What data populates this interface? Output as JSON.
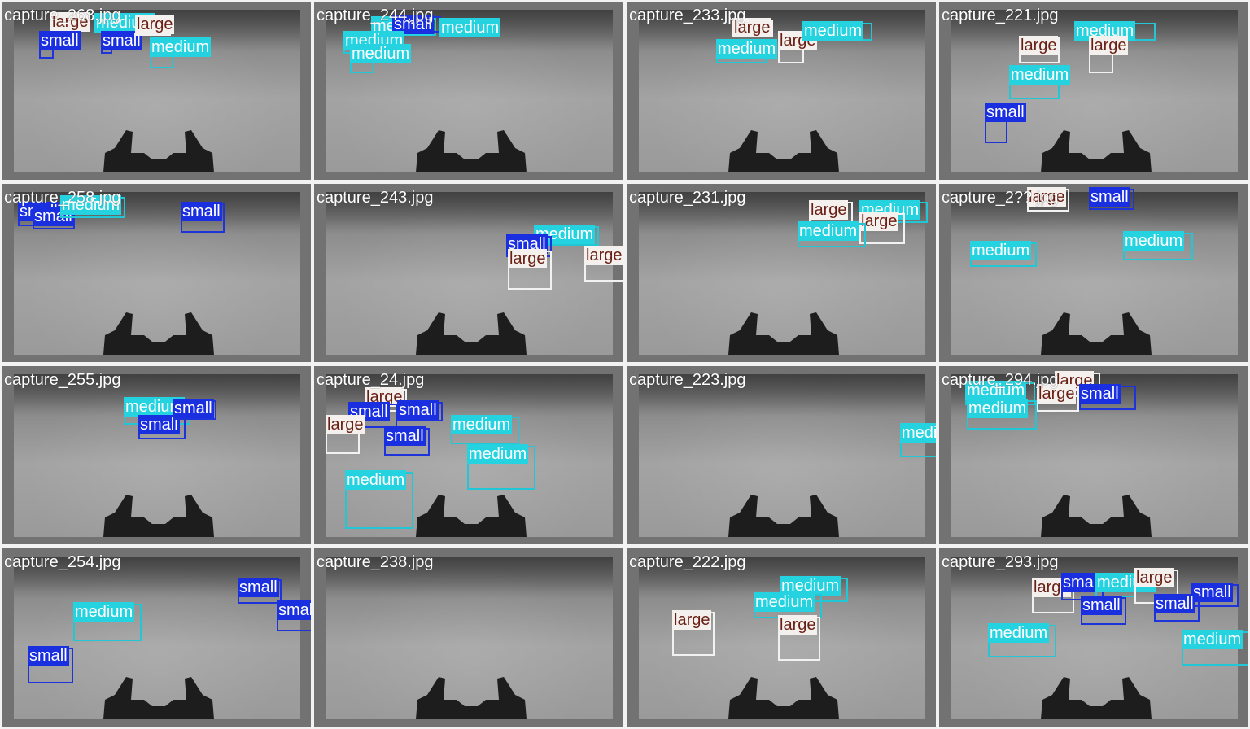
{
  "class_styles": {
    "small": {
      "label_bg": "#1a2fe0",
      "label_fg": "#ffffff",
      "box": "#1e33d9"
    },
    "medium": {
      "label_bg": "#25d3e0",
      "label_fg": "#ffffff",
      "box": "#22c7d6"
    },
    "large": {
      "label_bg": "#f4f0ee",
      "label_fg": "#6a1f14",
      "box": "#f2f2f2"
    }
  },
  "tiles": [
    {
      "filename": "capture_268.jpg"
    },
    {
      "filename": "capture_244.jpg"
    },
    {
      "filename": "capture_233.jpg"
    },
    {
      "filename": "capture_221.jpg"
    },
    {
      "filename": "capture_258.jpg"
    },
    {
      "filename": "capture_243.jpg"
    },
    {
      "filename": "capture_231.jpg"
    },
    {
      "filename": "capture_2??.jpg"
    },
    {
      "filename": "capture_255.jpg"
    },
    {
      "filename": "capture_24.jpg"
    },
    {
      "filename": "capture_223.jpg"
    },
    {
      "filename": "capture_294.jpg"
    },
    {
      "filename": "capture_254.jpg"
    },
    {
      "filename": "capture_238.jpg"
    },
    {
      "filename": "capture_222.jpg"
    },
    {
      "filename": "capture_293.jpg"
    }
  ],
  "labels": {
    "small": "small",
    "medium": "medium",
    "large": "large"
  }
}
